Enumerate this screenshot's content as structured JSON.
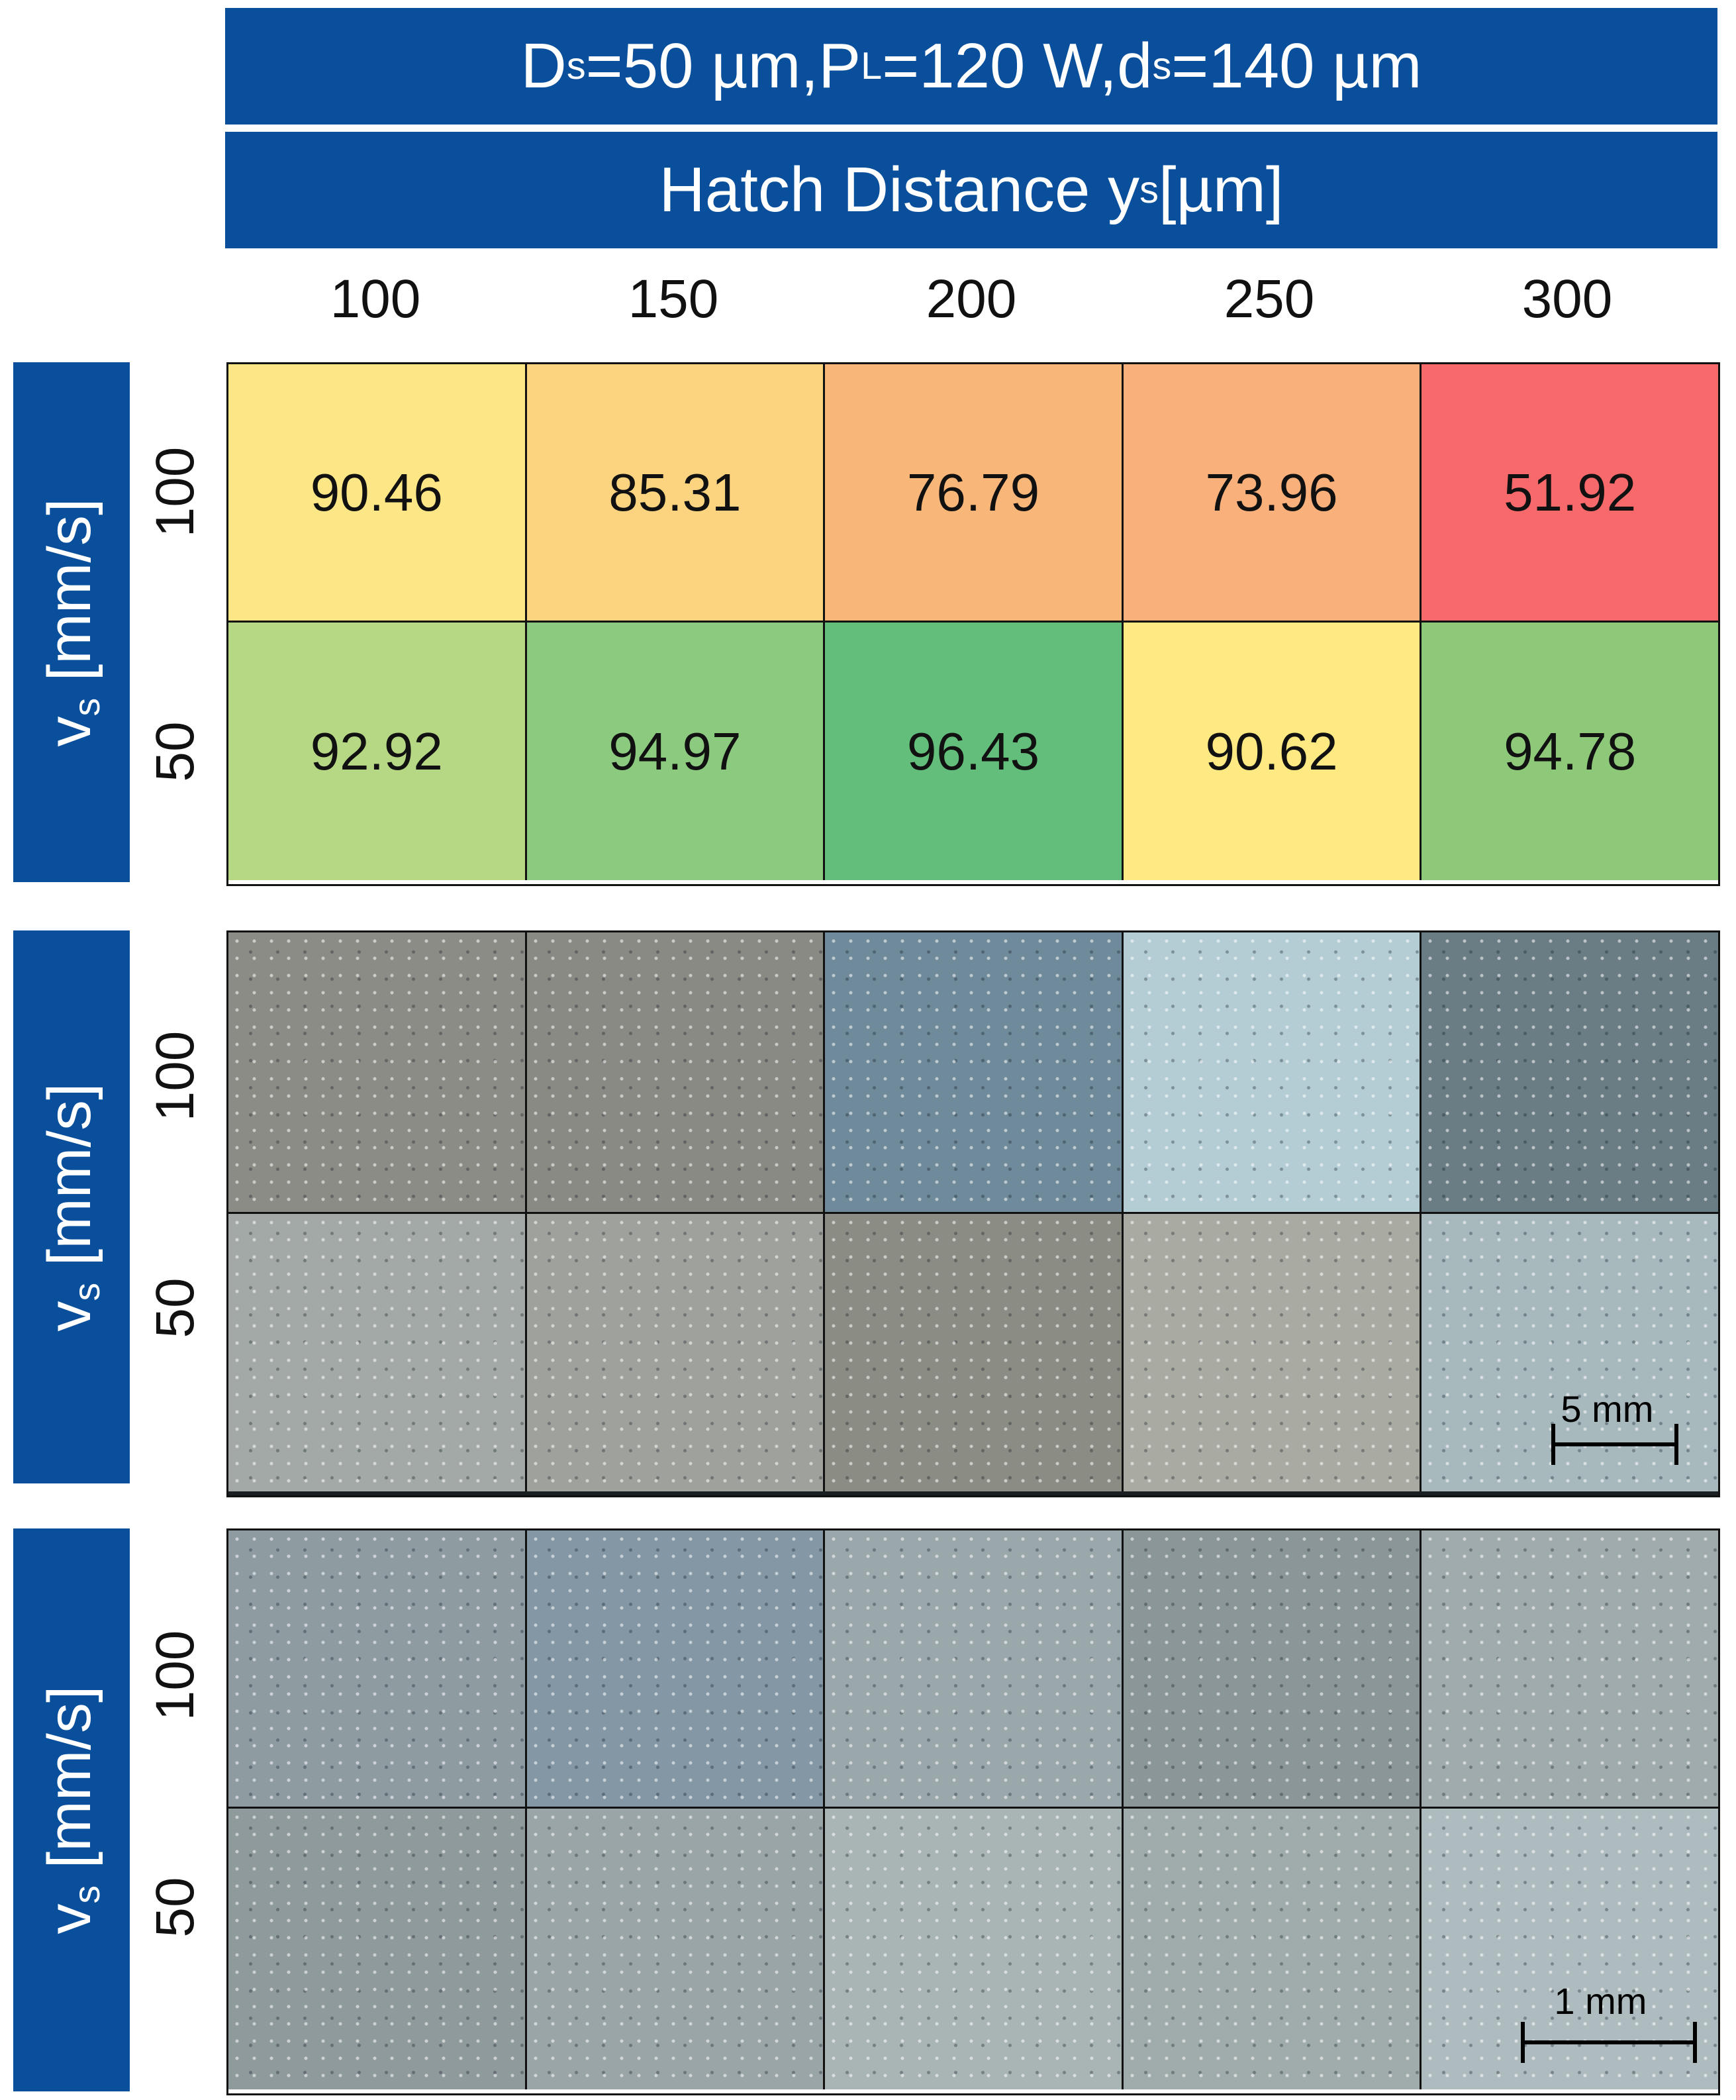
{
  "header": {
    "params": {
      "d_sym": "D",
      "d_sub": "s",
      "d_val": "=50 µm, ",
      "p_sym": "P",
      "p_sub": "L",
      "p_val": "=120 W, ",
      "ds_sym": "d",
      "ds_sub": "s",
      "ds_val": "=140 µm"
    },
    "axis_title": {
      "text": "Hatch Distance y",
      "sub": "s",
      "unit": " [µm]"
    }
  },
  "y_axis": {
    "sym": "v",
    "sub": "s",
    "unit": " [mm/s]"
  },
  "chart_data": {
    "type": "heatmap",
    "title": "",
    "xlabel": "Hatch Distance ys [µm]",
    "ylabel": "vs [mm/s]",
    "x": [
      "100",
      "150",
      "200",
      "250",
      "300"
    ],
    "y": [
      "100",
      "50"
    ],
    "values": [
      [
        "90.46",
        "85.31",
        "76.79",
        "73.96",
        "51.92"
      ],
      [
        "92.92",
        "94.97",
        "96.43",
        "90.62",
        "94.78"
      ]
    ],
    "cell_colors": [
      [
        "#fde685",
        "#fcd37f",
        "#f9b679",
        "#f9b07a",
        "#f8696b"
      ],
      [
        "#b6d884",
        "#8ccb7f",
        "#63be7b",
        "#fee983",
        "#8ec97a"
      ]
    ]
  },
  "scale_bars": {
    "macro": "5 mm",
    "micro": "1 mm"
  }
}
